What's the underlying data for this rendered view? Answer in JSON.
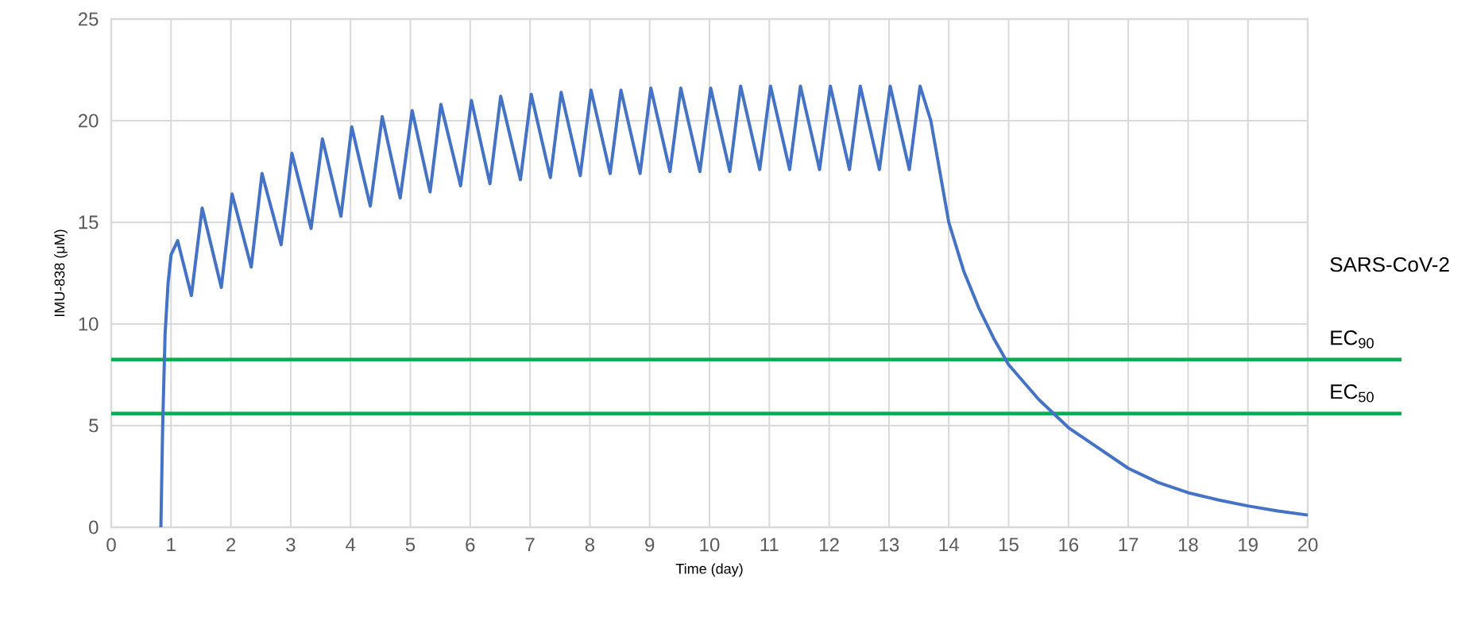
{
  "chart_data": {
    "type": "line",
    "xlabel": "Time (day)",
    "ylabel": "IMU-838 (μM)",
    "x": [
      0.83,
      0.86,
      0.9,
      0.95,
      1.0,
      1.11,
      1.34,
      1.52,
      1.84,
      2.02,
      2.34,
      2.52,
      2.84,
      3.02,
      3.34,
      3.53,
      3.84,
      4.02,
      4.33,
      4.53,
      4.83,
      5.03,
      5.33,
      5.51,
      5.84,
      6.02,
      6.33,
      6.51,
      6.84,
      7.02,
      7.34,
      7.52,
      7.84,
      8.02,
      8.34,
      8.52,
      8.84,
      9.02,
      9.34,
      9.52,
      9.84,
      10.02,
      10.34,
      10.52,
      10.84,
      11.02,
      11.34,
      11.52,
      11.84,
      12.02,
      12.34,
      12.52,
      12.84,
      13.02,
      13.34,
      13.52,
      13.7,
      13.85,
      14.0,
      14.25,
      14.5,
      14.75,
      15.0,
      15.5,
      16.0,
      16.5,
      17.0,
      17.5,
      18.0,
      18.5,
      19.0,
      19.5,
      20.0
    ],
    "series": [
      {
        "color": "#4472c4",
        "values": [
          0,
          5,
          9.5,
          12,
          13.4,
          14.1,
          11.4,
          15.7,
          11.8,
          16.4,
          12.8,
          17.4,
          13.9,
          18.4,
          14.7,
          19.1,
          15.3,
          19.7,
          15.8,
          20.2,
          16.2,
          20.5,
          16.5,
          20.8,
          16.8,
          21.0,
          16.9,
          21.2,
          17.1,
          21.3,
          17.2,
          21.4,
          17.3,
          21.5,
          17.4,
          21.5,
          17.4,
          21.6,
          17.5,
          21.6,
          17.5,
          21.6,
          17.5,
          21.7,
          17.6,
          21.7,
          17.6,
          21.7,
          17.6,
          21.7,
          17.6,
          21.7,
          17.6,
          21.7,
          17.6,
          21.7,
          20.0,
          17.5,
          15.0,
          12.6,
          10.8,
          9.3,
          8.0,
          6.3,
          4.9,
          3.9,
          2.9,
          2.2,
          1.7,
          1.35,
          1.05,
          0.8,
          0.6
        ]
      }
    ],
    "xlim": [
      0,
      20
    ],
    "ylim": [
      0,
      25
    ],
    "xticks": [
      0,
      1,
      2,
      3,
      4,
      5,
      6,
      7,
      8,
      9,
      10,
      11,
      12,
      13,
      14,
      15,
      16,
      17,
      18,
      19,
      20
    ],
    "yticks": [
      0,
      5,
      10,
      15,
      20,
      25
    ],
    "grid": true,
    "ref_lines": [
      {
        "axis": "y",
        "value": 8.25,
        "label": "EC$_{90}$",
        "color": "#00b050"
      },
      {
        "axis": "y",
        "value": 5.6,
        "label": "EC$_{50}$",
        "color": "#00b050"
      }
    ],
    "annotations": [
      "SARS-CoV-2"
    ]
  }
}
